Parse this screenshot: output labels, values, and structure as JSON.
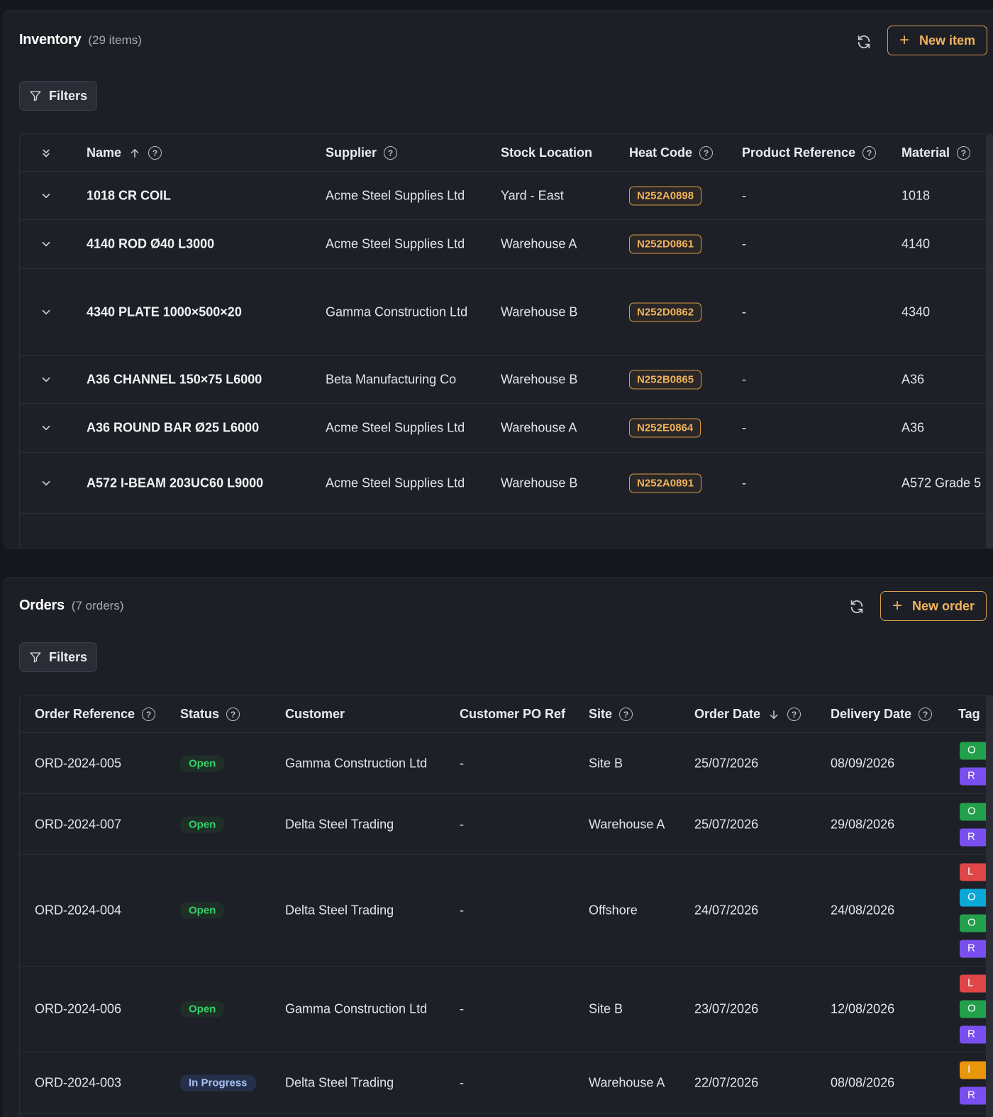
{
  "inventory": {
    "title": "Inventory",
    "count": "(29 items)",
    "new_label": "New item",
    "filters_label": "Filters",
    "columns": {
      "name": "Name",
      "supplier": "Supplier",
      "location": "Stock Location",
      "heat": "Heat Code",
      "product_ref": "Product Reference",
      "material": "Material"
    },
    "rows": [
      {
        "name": "1018 CR COIL",
        "supplier": "Acme Steel Supplies Ltd",
        "location": "Yard - East",
        "heat": "N252A0898",
        "product_ref": "-",
        "material": "1018"
      },
      {
        "name": "4140 ROD Ø40 L3000",
        "supplier": "Acme Steel Supplies Ltd",
        "location": "Warehouse A",
        "heat": "N252D0861",
        "product_ref": "-",
        "material": "4140"
      },
      {
        "name": "4340 PLATE 1000×500×20",
        "supplier": "Gamma Construction Ltd",
        "location": "Warehouse B",
        "heat": "N252D0862",
        "product_ref": "-",
        "material": "4340"
      },
      {
        "name": "A36 CHANNEL 150×75 L6000",
        "supplier": "Beta Manufacturing Co",
        "location": "Warehouse B",
        "heat": "N252B0865",
        "product_ref": "-",
        "material": "A36"
      },
      {
        "name": "A36 ROUND BAR Ø25 L6000",
        "supplier": "Acme Steel Supplies Ltd",
        "location": "Warehouse A",
        "heat": "N252E0864",
        "product_ref": "-",
        "material": "A36"
      },
      {
        "name": "A572 I-BEAM 203UC60 L9000",
        "supplier": "Acme Steel Supplies Ltd",
        "location": "Warehouse B",
        "heat": "N252A0891",
        "product_ref": "-",
        "material": "A572 Grade 5"
      }
    ]
  },
  "orders": {
    "title": "Orders",
    "count": "(7 orders)",
    "new_label": "New order",
    "filters_label": "Filters",
    "columns": {
      "ref": "Order Reference",
      "status": "Status",
      "customer": "Customer",
      "po_ref": "Customer PO Ref",
      "site": "Site",
      "order_date": "Order Date",
      "delivery_date": "Delivery Date",
      "tags": "Tag"
    },
    "rows": [
      {
        "ref": "ORD-2024-005",
        "status": "Open",
        "customer": "Gamma Construction Ltd",
        "po_ref": "-",
        "site": "Site B",
        "order_date": "25/07/2026",
        "delivery_date": "08/09/2026",
        "tags": [
          {
            "text": "O",
            "color": "#22a04b"
          },
          {
            "text": "R",
            "color": "#7a4ff0"
          }
        ]
      },
      {
        "ref": "ORD-2024-007",
        "status": "Open",
        "customer": "Delta Steel Trading",
        "po_ref": "-",
        "site": "Warehouse A",
        "order_date": "25/07/2026",
        "delivery_date": "29/08/2026",
        "tags": [
          {
            "text": "O",
            "color": "#22a04b"
          },
          {
            "text": "R",
            "color": "#7a4ff0"
          }
        ]
      },
      {
        "ref": "ORD-2024-004",
        "status": "Open",
        "customer": "Delta Steel Trading",
        "po_ref": "-",
        "site": "Offshore",
        "order_date": "24/07/2026",
        "delivery_date": "24/08/2026",
        "tags": [
          {
            "text": "L",
            "color": "#e04646"
          },
          {
            "text": "O",
            "color": "#0aa8d6"
          },
          {
            "text": "O",
            "color": "#22a04b"
          },
          {
            "text": "R",
            "color": "#7a4ff0"
          }
        ]
      },
      {
        "ref": "ORD-2024-006",
        "status": "Open",
        "customer": "Gamma Construction Ltd",
        "po_ref": "-",
        "site": "Site B",
        "order_date": "23/07/2026",
        "delivery_date": "12/08/2026",
        "tags": [
          {
            "text": "L",
            "color": "#e04646"
          },
          {
            "text": "O",
            "color": "#22a04b"
          },
          {
            "text": "R",
            "color": "#7a4ff0"
          }
        ]
      },
      {
        "ref": "ORD-2024-003",
        "status": "In Progress",
        "customer": "Delta Steel Trading",
        "po_ref": "-",
        "site": "Warehouse A",
        "order_date": "22/07/2026",
        "delivery_date": "08/08/2026",
        "tags": [
          {
            "text": "I",
            "color": "#e8960c"
          },
          {
            "text": "R",
            "color": "#7a4ff0"
          }
        ]
      }
    ]
  },
  "colors": {
    "accent": "#f0b35b",
    "background": "#1d1f26",
    "open_status": "#34d36b"
  },
  "icons": {
    "refresh": "refresh-icon",
    "filter": "filter-icon",
    "plus": "plus-icon",
    "chevron": "chevron-down-icon",
    "help": "help-circle-icon",
    "sort_asc": "arrow-up-icon",
    "sort_desc": "arrow-down-icon"
  }
}
